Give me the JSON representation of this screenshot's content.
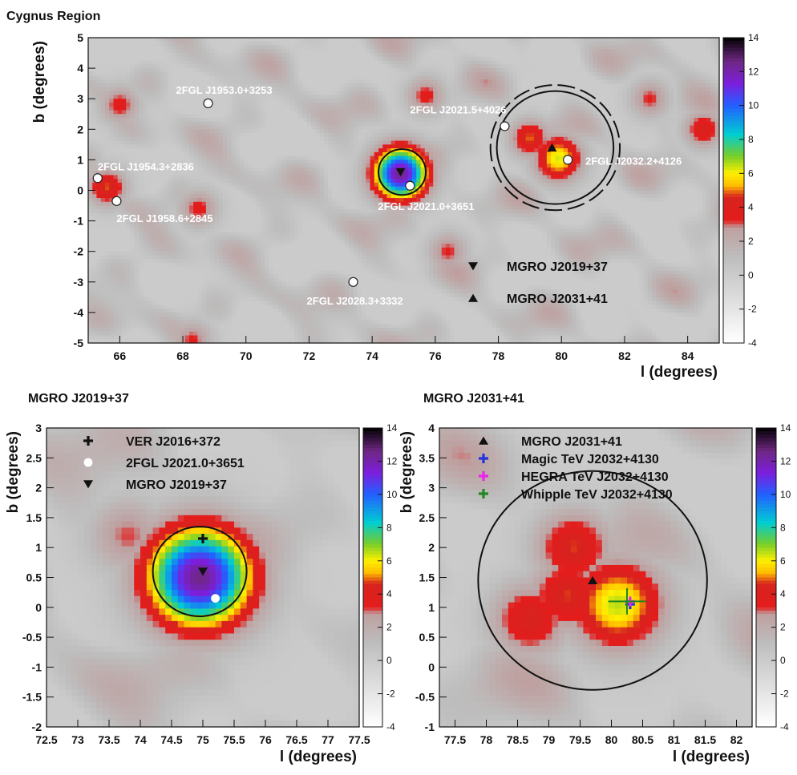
{
  "chart_data": [
    {
      "type": "heatmap",
      "title": "Cygnus Region",
      "xlabel": "l (degrees)",
      "ylabel": "b (degrees)",
      "xlim": [
        65,
        85
      ],
      "ylim": [
        -5,
        5
      ],
      "x_reversed": false,
      "xticks": [
        "66",
        "68",
        "70",
        "72",
        "74",
        "76",
        "78",
        "80",
        "82",
        "84"
      ],
      "yticks": [
        "-5",
        "-4",
        "-3",
        "-2",
        "-1",
        "0",
        "1",
        "2",
        "3",
        "4",
        "5"
      ],
      "colorbar": {
        "min": -4,
        "max": 14,
        "ticks": [
          "-4",
          "-2",
          "0",
          "2",
          "4",
          "6",
          "8",
          "10",
          "12",
          "14"
        ]
      },
      "blobs": [
        {
          "l": 74.9,
          "b": 0.55,
          "peak": 12.5
        },
        {
          "l": 79.9,
          "b": 1.05,
          "peak": 6.0
        },
        {
          "l": 79.0,
          "b": 1.7,
          "peak": 4.6
        },
        {
          "l": 65.6,
          "b": 0.1,
          "peak": 4.5
        },
        {
          "l": 84.5,
          "b": 2.0,
          "peak": 4.0
        },
        {
          "l": 66.0,
          "b": 2.8,
          "peak": 3.3
        },
        {
          "l": 68.5,
          "b": -0.6,
          "peak": 3.2
        },
        {
          "l": 75.7,
          "b": 3.1,
          "peak": 3.2
        },
        {
          "l": 82.8,
          "b": 3.0,
          "peak": 3.0
        },
        {
          "l": 76.4,
          "b": -2.0,
          "peak": 3.0
        },
        {
          "l": 68.3,
          "b": -4.9,
          "peak": 3.0
        }
      ],
      "sources": [
        {
          "label": "2FGL J1953.0+3253",
          "l": 68.8,
          "b": 2.85
        },
        {
          "label": "2FGL J1954.3+2836",
          "l": 65.3,
          "b": 0.4
        },
        {
          "label": "2FGL J1958.6+2845",
          "l": 65.9,
          "b": -0.35
        },
        {
          "label": "2FGL J2021.5+4026",
          "l": 78.2,
          "b": 2.1
        },
        {
          "label": "2FGL J2032.2+4126",
          "l": 80.2,
          "b": 1.0
        },
        {
          "label": "2FGL J2021.0+3651",
          "l": 75.2,
          "b": 0.15
        },
        {
          "label": "2FGL J2028.3+3332",
          "l": 73.4,
          "b": -3.0
        }
      ],
      "markers": [
        {
          "label": "MGRO J2019+37",
          "symbol": "triangle-down",
          "l": 74.9,
          "b": 0.6
        },
        {
          "label": "MGRO J2031+41",
          "symbol": "triangle-up",
          "l": 79.7,
          "b": 1.4
        }
      ],
      "circles": [
        {
          "l": 74.95,
          "b": 0.6,
          "r": 0.75,
          "style": "solid"
        },
        {
          "l": 79.8,
          "b": 1.4,
          "r": 1.85,
          "style": "solid"
        },
        {
          "l": 79.8,
          "b": 1.4,
          "r": 2.05,
          "style": "dashed"
        }
      ],
      "legend": [
        {
          "label": "MGRO J2019+37",
          "symbol": "triangle-down"
        },
        {
          "label": "MGRO J2031+41",
          "symbol": "triangle-up"
        }
      ],
      "legend_position": "bottom-right"
    },
    {
      "type": "heatmap",
      "title": "MGRO J2019+37",
      "xlabel": "l (degrees)",
      "ylabel": "b (degrees)",
      "xlim": [
        72.5,
        77.5
      ],
      "ylim": [
        -2,
        3
      ],
      "xticks": [
        "72.5",
        "73",
        "73.5",
        "74",
        "74.5",
        "75",
        "75.5",
        "76",
        "76.5",
        "77",
        "77.5"
      ],
      "yticks": [
        "-2",
        "-1.5",
        "-1",
        "-0.5",
        "0",
        "0.5",
        "1",
        "1.5",
        "2",
        "2.5",
        "3"
      ],
      "colorbar": {
        "min": -4,
        "max": 14,
        "ticks": [
          "-4",
          "-2",
          "0",
          "2",
          "4",
          "6",
          "8",
          "10",
          "12",
          "14"
        ]
      },
      "blobs": [
        {
          "l": 74.95,
          "b": 0.5,
          "peak": 12.5
        },
        {
          "l": 73.8,
          "b": 1.2,
          "peak": 2.8
        }
      ],
      "markers": [
        {
          "label": "VER J2016+372",
          "symbol": "cross",
          "color": "#111111",
          "l": 75.0,
          "b": 1.15
        },
        {
          "label": "2FGL J2021.0+3651",
          "symbol": "circle",
          "color": "#ffffff",
          "l": 75.2,
          "b": 0.15
        },
        {
          "label": "MGRO J2019+37",
          "symbol": "triangle-down",
          "color": "#111111",
          "l": 75.0,
          "b": 0.6
        }
      ],
      "circles": [
        {
          "l": 74.95,
          "b": 0.6,
          "r": 0.75,
          "style": "solid"
        }
      ],
      "legend": [
        {
          "label": "VER J2016+372",
          "symbol": "cross",
          "color": "#111111"
        },
        {
          "label": "2FGL J2021.0+3651",
          "symbol": "circle",
          "color": "#ffffff"
        },
        {
          "label": "MGRO J2019+37",
          "symbol": "triangle-down",
          "color": "#111111"
        }
      ],
      "legend_position": "top-left"
    },
    {
      "type": "heatmap",
      "title": "MGRO J2031+41",
      "xlabel": "l (degrees)",
      "ylabel": "b (degrees)",
      "xlim": [
        77.25,
        82.25
      ],
      "ylim": [
        -1,
        4
      ],
      "xticks": [
        "77.5",
        "78",
        "78.5",
        "79",
        "79.5",
        "80",
        "80.5",
        "81",
        "81.5",
        "82"
      ],
      "yticks": [
        "-1",
        "-0.5",
        "0",
        "0.5",
        "1",
        "1.5",
        "2",
        "2.5",
        "3",
        "3.5",
        "4"
      ],
      "colorbar": {
        "min": -4,
        "max": 14,
        "ticks": [
          "-4",
          "-2",
          "0",
          "2",
          "4",
          "6",
          "8",
          "10",
          "12",
          "14"
        ]
      },
      "blobs": [
        {
          "l": 80.1,
          "b": 1.05,
          "peak": 6.2
        },
        {
          "l": 79.3,
          "b": 1.2,
          "peak": 4.4
        },
        {
          "l": 79.4,
          "b": 2.0,
          "peak": 4.4
        },
        {
          "l": 78.7,
          "b": 0.8,
          "peak": 4.2
        }
      ],
      "markers": [
        {
          "label": "MGRO J2031+41",
          "symbol": "triangle-up",
          "color": "#111111",
          "l": 79.7,
          "b": 1.45
        },
        {
          "label": "Magic TeV J2032+4130",
          "symbol": "cross",
          "color": "#2233dd",
          "l": 80.3,
          "b": 1.05
        },
        {
          "label": "HEGRA TeV J2032+4130",
          "symbol": "cross",
          "color": "#ee22ee",
          "l": 80.3,
          "b": 1.1
        },
        {
          "label": "Whipple TeV J2032+4130",
          "symbol": "errcross",
          "color": "#228822",
          "l": 80.25,
          "b": 1.1,
          "dl": 0.3,
          "db": 0.22
        }
      ],
      "circles": [
        {
          "l": 79.7,
          "b": 1.45,
          "r": 1.83,
          "style": "solid"
        }
      ],
      "legend": [
        {
          "label": "MGRO J2031+41",
          "symbol": "triangle-up",
          "color": "#111111"
        },
        {
          "label": "Magic TeV J2032+4130",
          "symbol": "cross",
          "color": "#2233dd"
        },
        {
          "label": "HEGRA TeV J2032+4130",
          "symbol": "cross",
          "color": "#ee22ee"
        },
        {
          "label": "Whipple TeV J2032+4130",
          "symbol": "cross",
          "color": "#228822"
        }
      ],
      "legend_position": "top-left"
    }
  ]
}
